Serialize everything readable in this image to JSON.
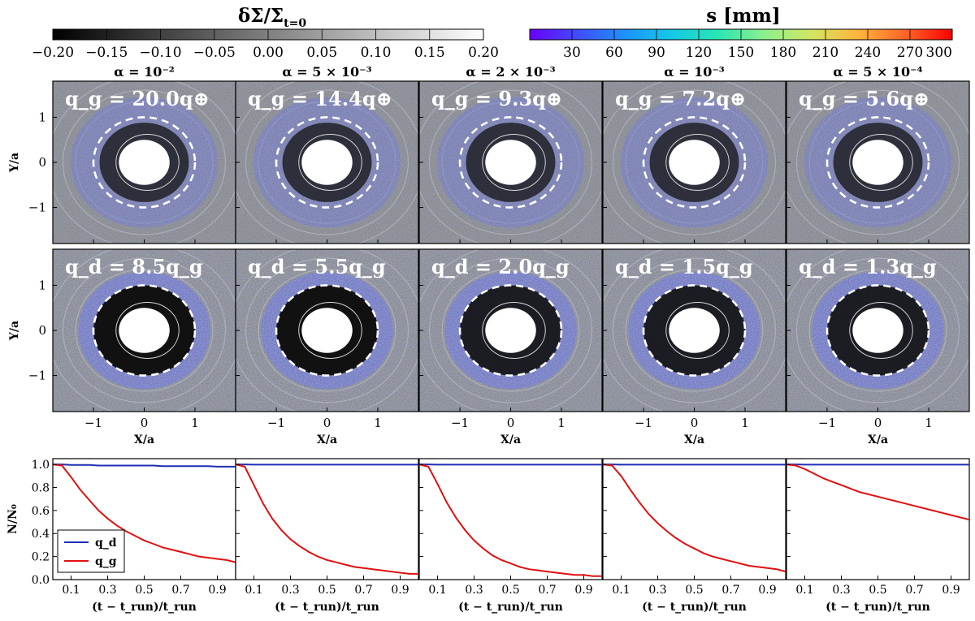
{
  "figure": {
    "colorbar_left": {
      "title": "δΣ/Σ_t=0",
      "title_main": "δΣ/Σ",
      "title_sub": "t=0",
      "ticks": [
        "−0.20",
        "−0.15",
        "−0.10",
        "−0.05",
        "0.00",
        "0.05",
        "0.10",
        "0.15",
        "0.20"
      ],
      "tick_values": [
        -0.2,
        -0.15,
        -0.1,
        -0.05,
        0.0,
        0.05,
        0.1,
        0.15,
        0.2
      ],
      "range": [
        -0.2,
        0.2
      ],
      "colormap": "greys",
      "color_low": "#000000",
      "color_high": "#ffffff"
    },
    "colorbar_right": {
      "title": "s [mm]",
      "ticks": [
        "30",
        "60",
        "90",
        "120",
        "150",
        "180",
        "210",
        "240",
        "270",
        "300"
      ],
      "tick_values": [
        30,
        60,
        90,
        120,
        150,
        180,
        210,
        240,
        270,
        300
      ],
      "range": [
        0,
        300
      ],
      "colormap": "rainbow",
      "colors": [
        "#6a00ff",
        "#3f4bff",
        "#1e90ff",
        "#14c8e6",
        "#28e6b4",
        "#8cf08c",
        "#d2e664",
        "#ffb43c",
        "#ff6428",
        "#ff0000"
      ]
    },
    "columns": [
      {
        "alpha_label": "α = 10⁻²",
        "qg_label": "q_g = 20.0q⊕",
        "qd_label": "q_d = 8.5q_g"
      },
      {
        "alpha_label": "α = 5 × 10⁻³",
        "qg_label": "q_g = 14.4q⊕",
        "qd_label": "q_d = 5.5q_g"
      },
      {
        "alpha_label": "α = 2 × 10⁻³",
        "qg_label": "q_g = 9.3q⊕",
        "qd_label": "q_d = 2.0q_g"
      },
      {
        "alpha_label": "α = 10⁻³",
        "qg_label": "q_g = 7.2q⊕",
        "qd_label": "q_d = 1.5q_g"
      },
      {
        "alpha_label": "α = 5 × 10⁻⁴",
        "qg_label": "q_g = 5.6q⊕",
        "qd_label": "q_d = 1.3q_g"
      }
    ],
    "map_axes": {
      "xlabel": "X/a",
      "ylabel": "Y/a",
      "x_ticks": [
        "−1",
        "0",
        "1"
      ],
      "x_tick_values": [
        -1,
        0,
        1
      ],
      "y_ticks": [
        "1",
        "0",
        "−1"
      ],
      "y_tick_values": [
        1,
        0,
        -1
      ],
      "range": [
        -1.8,
        1.8
      ]
    },
    "line_axes": {
      "xlabel": "(t − t_run)/t_run",
      "ylabel": "N/N₀",
      "x_ticks": [
        "0.1",
        "0.3",
        "0.5",
        "0.7",
        "0.9"
      ],
      "x_tick_values": [
        0.1,
        0.3,
        0.5,
        0.7,
        0.9
      ],
      "y_ticks": [
        "1.0",
        "0.8",
        "0.6",
        "0.4",
        "0.2",
        "0.0"
      ],
      "y_tick_values": [
        1.0,
        0.8,
        0.6,
        0.4,
        0.2,
        0.0
      ],
      "xlim": [
        0,
        1
      ],
      "ylim": [
        0,
        1.05
      ],
      "legend": {
        "location": "lower-left",
        "entries": [
          "q_d",
          "q_g"
        ]
      }
    }
  },
  "chart_data": {
    "type": "line",
    "title": "",
    "xlabel": "(t − t_run)/t_run",
    "ylabel": "N/N₀",
    "ylim": [
      0,
      1.05
    ],
    "x": [
      0.0,
      0.05,
      0.1,
      0.15,
      0.2,
      0.25,
      0.3,
      0.35,
      0.4,
      0.45,
      0.5,
      0.55,
      0.6,
      0.65,
      0.7,
      0.75,
      0.8,
      0.85,
      0.9,
      0.95,
      1.0
    ],
    "panels": [
      {
        "alpha": "α = 10⁻²",
        "series": [
          {
            "name": "q_d",
            "color": "#1f2fb4",
            "values": [
              1.0,
              1.0,
              0.995,
              0.995,
              0.995,
              0.99,
              0.99,
              0.99,
              0.99,
              0.99,
              0.99,
              0.99,
              0.985,
              0.985,
              0.985,
              0.985,
              0.985,
              0.985,
              0.98,
              0.98,
              0.98
            ]
          },
          {
            "name": "q_g",
            "color": "#e01010",
            "values": [
              1.0,
              0.99,
              0.89,
              0.78,
              0.69,
              0.6,
              0.53,
              0.47,
              0.42,
              0.38,
              0.34,
              0.31,
              0.28,
              0.26,
              0.24,
              0.22,
              0.2,
              0.19,
              0.18,
              0.17,
              0.15
            ]
          }
        ]
      },
      {
        "alpha": "α = 5 × 10⁻³",
        "series": [
          {
            "name": "q_d",
            "color": "#1f2fb4",
            "values": [
              1.0,
              1.0,
              0.998,
              0.998,
              0.998,
              0.998,
              0.998,
              0.998,
              0.998,
              0.998,
              0.998,
              0.998,
              0.998,
              0.998,
              0.998,
              0.998,
              0.998,
              0.998,
              0.998,
              0.998,
              0.998
            ]
          },
          {
            "name": "q_g",
            "color": "#e01010",
            "values": [
              1.0,
              0.98,
              0.82,
              0.66,
              0.53,
              0.43,
              0.35,
              0.29,
              0.24,
              0.2,
              0.17,
              0.15,
              0.13,
              0.11,
              0.1,
              0.09,
              0.08,
              0.07,
              0.06,
              0.05,
              0.05
            ]
          }
        ]
      },
      {
        "alpha": "α = 2 × 10⁻³",
        "series": [
          {
            "name": "q_d",
            "color": "#1f2fb4",
            "values": [
              1.0,
              1.0,
              0.998,
              0.998,
              0.998,
              0.998,
              0.998,
              0.998,
              0.998,
              0.998,
              0.998,
              0.998,
              0.998,
              0.998,
              0.998,
              0.998,
              0.998,
              0.998,
              0.998,
              0.998,
              0.998
            ]
          },
          {
            "name": "q_g",
            "color": "#e01010",
            "values": [
              1.0,
              0.98,
              0.83,
              0.67,
              0.54,
              0.43,
              0.34,
              0.27,
              0.21,
              0.17,
              0.14,
              0.11,
              0.09,
              0.08,
              0.07,
              0.06,
              0.05,
              0.04,
              0.04,
              0.03,
              0.03
            ]
          }
        ]
      },
      {
        "alpha": "α = 10⁻³",
        "series": [
          {
            "name": "q_d",
            "color": "#1f2fb4",
            "values": [
              1.0,
              1.0,
              0.998,
              0.998,
              0.998,
              0.998,
              0.998,
              0.998,
              0.998,
              0.998,
              0.998,
              0.998,
              0.998,
              0.998,
              0.998,
              0.998,
              0.998,
              0.998,
              0.998,
              0.998,
              0.998
            ]
          },
          {
            "name": "q_g",
            "color": "#e01010",
            "values": [
              1.0,
              0.99,
              0.9,
              0.78,
              0.67,
              0.57,
              0.49,
              0.42,
              0.36,
              0.31,
              0.27,
              0.23,
              0.2,
              0.18,
              0.16,
              0.14,
              0.12,
              0.11,
              0.1,
              0.09,
              0.07
            ]
          }
        ]
      },
      {
        "alpha": "α = 5 × 10⁻⁴",
        "series": [
          {
            "name": "q_d",
            "color": "#1f2fb4",
            "values": [
              1.0,
              1.0,
              0.998,
              0.998,
              0.998,
              0.998,
              0.998,
              0.998,
              0.998,
              0.998,
              0.998,
              0.998,
              0.998,
              0.998,
              0.998,
              0.998,
              0.998,
              0.998,
              0.998,
              0.998,
              0.998
            ]
          },
          {
            "name": "q_g",
            "color": "#e01010",
            "values": [
              1.0,
              0.99,
              0.96,
              0.92,
              0.88,
              0.85,
              0.82,
              0.79,
              0.76,
              0.74,
              0.72,
              0.7,
              0.68,
              0.66,
              0.64,
              0.62,
              0.6,
              0.58,
              0.56,
              0.54,
              0.52
            ]
          }
        ]
      }
    ]
  }
}
